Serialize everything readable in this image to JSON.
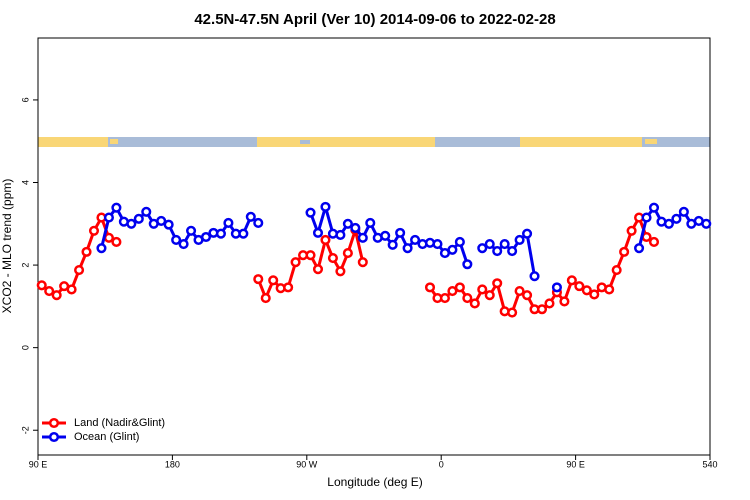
{
  "chart_data": {
    "type": "line",
    "title": "42.5N-47.5N April (Ver 10)   2014-09-06 to 2022-02-28",
    "x_label": "Longitude (deg E)",
    "y_label": "XCO2 - MLO trend (ppm)",
    "xlim": [
      90,
      540
    ],
    "xticks": [
      {
        "value": 90,
        "label": "90 E"
      },
      180,
      {
        "value": 270,
        "label": "90 W"
      },
      {
        "value": 360,
        "label": "0"
      },
      {
        "value": 450,
        "label": "90 E"
      },
      540
    ],
    "ylim": [
      -2.6,
      7.5
    ],
    "yticks": [
      -2,
      0,
      2,
      4,
      6
    ],
    "legend": "bottom-left",
    "x": [
      92.5,
      97.5,
      102.5,
      107.5,
      112.5,
      117.5,
      122.5,
      127.5,
      132.5,
      137.5,
      142.5,
      147.5,
      152.5,
      157.5,
      162.5,
      167.5,
      172.5,
      177.5,
      182.5,
      187.5,
      192.5,
      197.5,
      202.5,
      207.5,
      212.5,
      217.5,
      222.5,
      227.5,
      232.5,
      237.5,
      242.5,
      247.5,
      252.5,
      257.5,
      262.5,
      267.5,
      272.5,
      277.5,
      282.5,
      287.5,
      292.5,
      297.5,
      302.5,
      307.5,
      312.5,
      317.5,
      322.5,
      327.5,
      332.5,
      337.5,
      342.5,
      347.5,
      352.5,
      357.5,
      362.5,
      367.5,
      372.5,
      377.5,
      382.5,
      387.5,
      392.5,
      397.5,
      402.5,
      407.5,
      412.5,
      417.5,
      422.5,
      427.5,
      432.5,
      437.5,
      442.5,
      447.5,
      452.5,
      457.5,
      462.5,
      467.5,
      472.5,
      477.5,
      482.5,
      487.5,
      492.5,
      497.5,
      502.5,
      507.5,
      512.5,
      517.5,
      522.5,
      527.5,
      532.5,
      537.5
    ],
    "series": [
      {
        "name": "Land (Nadir&Glint)",
        "color": "#ff0000",
        "values": [
          1.51,
          1.37,
          1.27,
          1.49,
          1.41,
          1.88,
          2.32,
          2.83,
          3.15,
          2.66,
          2.56,
          null,
          null,
          null,
          null,
          null,
          null,
          null,
          null,
          null,
          null,
          null,
          null,
          null,
          null,
          null,
          null,
          null,
          null,
          1.66,
          1.2,
          1.63,
          1.44,
          1.46,
          2.07,
          2.24,
          2.24,
          1.9,
          2.61,
          2.17,
          1.85,
          2.29,
          2.85,
          2.07,
          null,
          null,
          null,
          null,
          null,
          null,
          null,
          null,
          1.46,
          1.2,
          1.2,
          1.37,
          1.46,
          1.2,
          1.07,
          1.41,
          1.27,
          1.56,
          0.88,
          0.85,
          1.37,
          1.27,
          0.93,
          0.93,
          1.07,
          1.34,
          1.12,
          1.63,
          1.49,
          1.39,
          1.29,
          1.46,
          1.41,
          1.88,
          2.32,
          2.83,
          3.15,
          2.68,
          2.56,
          null,
          null,
          null,
          null,
          null,
          null,
          null
        ]
      },
      {
        "name": "Ocean (Glint)",
        "color": "#0000ee",
        "values": [
          null,
          null,
          null,
          null,
          null,
          null,
          null,
          null,
          2.41,
          3.15,
          3.39,
          3.05,
          3.0,
          3.12,
          3.29,
          3.0,
          3.07,
          2.98,
          2.61,
          2.51,
          2.83,
          2.61,
          2.68,
          2.78,
          2.76,
          3.02,
          2.76,
          2.76,
          3.17,
          3.02,
          null,
          null,
          null,
          null,
          null,
          null,
          3.27,
          2.78,
          3.41,
          2.76,
          2.73,
          3.0,
          2.9,
          2.66,
          3.02,
          2.66,
          2.71,
          2.49,
          2.78,
          2.41,
          2.61,
          2.51,
          2.54,
          2.51,
          2.29,
          2.37,
          2.56,
          2.02,
          null,
          2.41,
          2.51,
          2.34,
          2.51,
          2.34,
          2.61,
          2.76,
          1.73,
          null,
          null,
          1.46,
          null,
          null,
          null,
          null,
          null,
          null,
          null,
          null,
          null,
          null,
          2.41,
          3.15,
          3.39,
          3.05,
          3.0,
          3.12,
          3.29,
          3.0,
          3.07,
          3.0
        ]
      }
    ]
  }
}
